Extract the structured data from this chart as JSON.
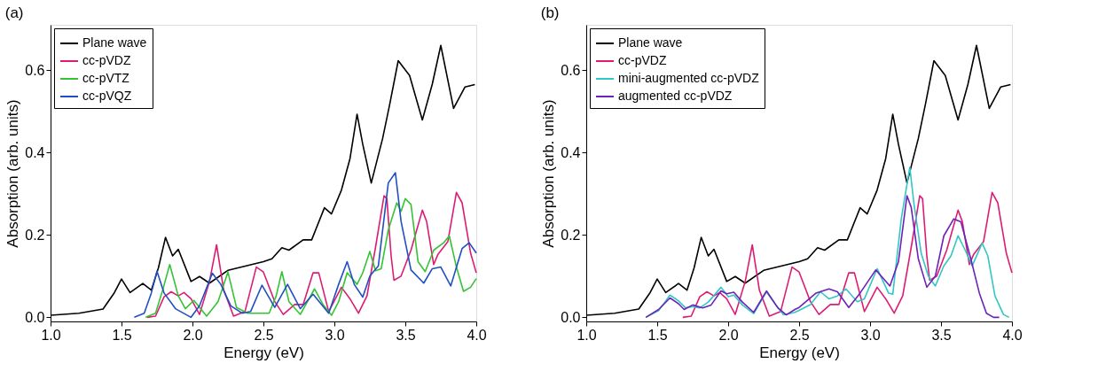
{
  "chart_data": [
    {
      "type": "line",
      "title": "(a)",
      "xlabel": "Energy (eV)",
      "ylabel": "Absorption (arb. units)",
      "xlim": [
        1.0,
        4.0
      ],
      "ylim": [
        -0.01,
        0.71
      ],
      "xticks": [
        {
          "value": 1,
          "label": "1.0"
        },
        1.5,
        {
          "value": 2,
          "label": "2.0"
        },
        2.5,
        {
          "value": 3,
          "label": "3.0"
        },
        3.5,
        {
          "value": 4,
          "label": "4.0"
        }
      ],
      "yticks": [
        {
          "value": 0,
          "label": "0.0"
        },
        0.2,
        0.4,
        0.6
      ],
      "grid": false,
      "legend": "top left",
      "line_style": "solid",
      "series": [
        {
          "name": "Plane wave",
          "color": "#000000",
          "x": [
            1.0,
            1.2,
            1.37,
            1.45,
            1.5,
            1.56,
            1.65,
            1.71,
            1.76,
            1.81,
            1.86,
            1.9,
            1.99,
            2.05,
            2.12,
            2.25,
            2.5,
            2.56,
            2.63,
            2.68,
            2.78,
            2.84,
            2.93,
            2.98,
            3.05,
            3.11,
            3.16,
            3.2,
            3.26,
            3.34,
            3.39,
            3.45,
            3.53,
            3.62,
            3.69,
            3.75,
            3.84,
            3.92,
            3.99
          ],
          "values": [
            0.005,
            0.01,
            0.02,
            0.06,
            0.093,
            0.06,
            0.082,
            0.066,
            0.12,
            0.194,
            0.149,
            0.165,
            0.087,
            0.099,
            0.083,
            0.114,
            0.135,
            0.142,
            0.169,
            0.163,
            0.188,
            0.188,
            0.266,
            0.251,
            0.309,
            0.385,
            0.493,
            0.42,
            0.326,
            0.434,
            0.517,
            0.623,
            0.587,
            0.479,
            0.566,
            0.66,
            0.507,
            0.559,
            0.565
          ]
        },
        {
          "name": "cc-pVDZ",
          "color": "#dc1c74",
          "x": [
            1.68,
            1.74,
            1.8,
            1.85,
            1.9,
            1.94,
            1.99,
            2.05,
            2.12,
            2.17,
            2.22,
            2.29,
            2.37,
            2.45,
            2.5,
            2.58,
            2.64,
            2.72,
            2.78,
            2.85,
            2.89,
            2.96,
            3.05,
            3.11,
            3.17,
            3.23,
            3.29,
            3.35,
            3.37,
            3.4,
            3.42,
            3.47,
            3.54,
            3.62,
            3.65,
            3.7,
            3.73,
            3.8,
            3.86,
            3.9,
            3.96,
            4.0
          ],
          "values": [
            0,
            0.003,
            0.05,
            0.062,
            0.052,
            0.06,
            0.045,
            0.007,
            0.087,
            0.176,
            0.066,
            0.003,
            0.014,
            0.122,
            0.11,
            0.038,
            0.007,
            0.031,
            0.031,
            0.108,
            0.108,
            0.014,
            0.073,
            0.045,
            0.01,
            0.052,
            0.17,
            0.295,
            0.288,
            0.149,
            0.09,
            0.1,
            0.163,
            0.26,
            0.233,
            0.128,
            0.153,
            0.184,
            0.303,
            0.278,
            0.156,
            0.108
          ]
        },
        {
          "name": "cc-pVTZ",
          "color": "#35c335",
          "x": [
            1.67,
            1.74,
            1.79,
            1.84,
            1.9,
            1.95,
            2.01,
            2.1,
            2.18,
            2.25,
            2.31,
            2.39,
            2.51,
            2.54,
            2.59,
            2.63,
            2.68,
            2.76,
            2.86,
            2.92,
            2.98,
            3.03,
            3.09,
            3.16,
            3.2,
            3.25,
            3.29,
            3.33,
            3.38,
            3.44,
            3.47,
            3.5,
            3.54,
            3.59,
            3.64,
            3.7,
            3.77,
            3.81,
            3.86,
            3.91,
            3.96,
            4.0
          ],
          "values": [
            0,
            0.01,
            0.066,
            0.128,
            0.052,
            0.021,
            0.041,
            0.003,
            0.038,
            0.11,
            0.024,
            0.01,
            0.01,
            0.01,
            0.052,
            0.111,
            0.038,
            0.007,
            0.069,
            0.031,
            0.005,
            0.038,
            0.108,
            0.08,
            0.108,
            0.16,
            0.113,
            0.118,
            0.212,
            0.278,
            0.257,
            0.288,
            0.274,
            0.135,
            0.111,
            0.163,
            0.181,
            0.198,
            0.122,
            0.063,
            0.073,
            0.094
          ]
        },
        {
          "name": "cc-pVQZ",
          "color": "#1f4fc0",
          "x": [
            1.59,
            1.66,
            1.71,
            1.75,
            1.8,
            1.88,
            1.99,
            2.05,
            2.14,
            2.2,
            2.27,
            2.35,
            2.41,
            2.49,
            2.58,
            2.67,
            2.76,
            2.85,
            2.96,
            3.03,
            3.09,
            3.14,
            3.2,
            3.25,
            3.31,
            3.38,
            3.43,
            3.47,
            3.54,
            3.63,
            3.69,
            3.75,
            3.82,
            3.9,
            3.95,
            4.0
          ],
          "values": [
            0,
            0.01,
            0.059,
            0.112,
            0.059,
            0.021,
            0,
            0.028,
            0.107,
            0.08,
            0.028,
            0.01,
            0.014,
            0.078,
            0.024,
            0.08,
            0.021,
            0.056,
            0.01,
            0.08,
            0.135,
            0.08,
            0.049,
            0.1,
            0.125,
            0.326,
            0.351,
            0.233,
            0.115,
            0.083,
            0.118,
            0.122,
            0.076,
            0.167,
            0.181,
            0.156
          ]
        }
      ]
    },
    {
      "type": "line",
      "title": "(b)",
      "xlabel": "Energy (eV)",
      "ylabel": "Absorption (arb. units)",
      "xlim": [
        1.0,
        4.0
      ],
      "ylim": [
        -0.01,
        0.71
      ],
      "xticks": [
        {
          "value": 1,
          "label": "1.0"
        },
        1.5,
        {
          "value": 2,
          "label": "2.0"
        },
        2.5,
        {
          "value": 3,
          "label": "3.0"
        },
        3.5,
        {
          "value": 4,
          "label": "4.0"
        }
      ],
      "yticks": [
        {
          "value": 0,
          "label": "0.0"
        },
        0.2,
        0.4,
        0.6
      ],
      "grid": false,
      "legend": "top left",
      "line_style": "solid",
      "series": [
        {
          "name": "Plane wave",
          "color": "#000000",
          "x": [
            1.0,
            1.2,
            1.37,
            1.45,
            1.5,
            1.56,
            1.65,
            1.71,
            1.76,
            1.81,
            1.86,
            1.9,
            1.99,
            2.05,
            2.12,
            2.25,
            2.5,
            2.56,
            2.63,
            2.68,
            2.78,
            2.84,
            2.93,
            2.98,
            3.05,
            3.11,
            3.16,
            3.2,
            3.26,
            3.34,
            3.39,
            3.45,
            3.53,
            3.62,
            3.69,
            3.75,
            3.84,
            3.92,
            3.99
          ],
          "values": [
            0.005,
            0.01,
            0.02,
            0.06,
            0.093,
            0.06,
            0.082,
            0.066,
            0.12,
            0.194,
            0.149,
            0.165,
            0.087,
            0.099,
            0.083,
            0.114,
            0.135,
            0.142,
            0.169,
            0.163,
            0.188,
            0.188,
            0.266,
            0.251,
            0.309,
            0.385,
            0.493,
            0.42,
            0.326,
            0.434,
            0.517,
            0.623,
            0.587,
            0.479,
            0.566,
            0.66,
            0.507,
            0.559,
            0.565
          ]
        },
        {
          "name": "cc-pVDZ",
          "color": "#dc1c74",
          "x": [
            1.68,
            1.74,
            1.8,
            1.85,
            1.9,
            1.94,
            1.99,
            2.05,
            2.12,
            2.17,
            2.22,
            2.29,
            2.37,
            2.45,
            2.5,
            2.58,
            2.64,
            2.72,
            2.78,
            2.85,
            2.89,
            2.96,
            3.05,
            3.11,
            3.17,
            3.23,
            3.29,
            3.35,
            3.37,
            3.4,
            3.42,
            3.47,
            3.54,
            3.62,
            3.65,
            3.7,
            3.73,
            3.8,
            3.86,
            3.9,
            3.96,
            4.0
          ],
          "values": [
            0,
            0.003,
            0.05,
            0.062,
            0.052,
            0.06,
            0.045,
            0.007,
            0.087,
            0.176,
            0.066,
            0.003,
            0.014,
            0.122,
            0.11,
            0.038,
            0.007,
            0.031,
            0.031,
            0.108,
            0.108,
            0.014,
            0.073,
            0.045,
            0.01,
            0.052,
            0.17,
            0.295,
            0.288,
            0.149,
            0.09,
            0.1,
            0.163,
            0.26,
            0.233,
            0.128,
            0.153,
            0.184,
            0.303,
            0.278,
            0.156,
            0.108
          ]
        },
        {
          "name": "mini-augmented cc-pVDZ",
          "color": "#33c6c6",
          "x": [
            1.42,
            1.51,
            1.59,
            1.65,
            1.7,
            1.75,
            1.8,
            1.86,
            1.95,
            2.0,
            2.04,
            2.1,
            2.18,
            2.27,
            2.33,
            2.39,
            2.47,
            2.5,
            2.58,
            2.65,
            2.71,
            2.77,
            2.83,
            2.91,
            2.96,
            3.05,
            3.13,
            3.16,
            3.22,
            3.28,
            3.31,
            3.36,
            3.41,
            3.46,
            3.52,
            3.57,
            3.62,
            3.67,
            3.72,
            3.79,
            3.83,
            3.88,
            3.94,
            3.98
          ],
          "values": [
            0,
            0.016,
            0.054,
            0.04,
            0.023,
            0.026,
            0.023,
            0.037,
            0.073,
            0.05,
            0.054,
            0.03,
            0.009,
            0.062,
            0.033,
            0.006,
            0.012,
            0.017,
            0.031,
            0.062,
            0.045,
            0.052,
            0.069,
            0.038,
            0.045,
            0.118,
            0.059,
            0.056,
            0.239,
            0.364,
            0.274,
            0.156,
            0.1,
            0.076,
            0.125,
            0.149,
            0.198,
            0.163,
            0.125,
            0.18,
            0.149,
            0.052,
            0.007,
            0
          ]
        },
        {
          "name": "augmented cc-pVDZ",
          "color": "#6a22b8",
          "x": [
            1.42,
            1.51,
            1.59,
            1.65,
            1.69,
            1.75,
            1.82,
            1.88,
            1.95,
            1.99,
            2.04,
            2.1,
            2.18,
            2.27,
            2.35,
            2.41,
            2.47,
            2.5,
            2.62,
            2.71,
            2.77,
            2.85,
            2.93,
            3.04,
            3.14,
            3.2,
            3.26,
            3.29,
            3.34,
            3.4,
            3.46,
            3.52,
            3.59,
            3.64,
            3.71,
            3.77,
            3.82,
            3.87,
            3.91
          ],
          "values": [
            0,
            0.019,
            0.047,
            0.033,
            0.019,
            0.03,
            0.023,
            0.03,
            0.064,
            0.057,
            0.061,
            0.037,
            0.012,
            0.064,
            0.023,
            0.006,
            0.019,
            0.024,
            0.059,
            0.069,
            0.062,
            0.024,
            0.059,
            0.115,
            0.076,
            0.135,
            0.295,
            0.267,
            0.142,
            0.073,
            0.1,
            0.198,
            0.239,
            0.232,
            0.142,
            0.059,
            0.01,
            0,
            0
          ]
        }
      ]
    }
  ]
}
